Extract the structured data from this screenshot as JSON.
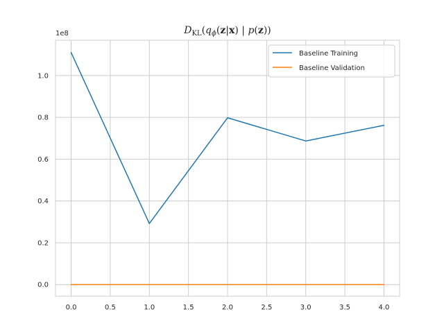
{
  "chart_data": {
    "type": "line",
    "title_parts": {
      "d": "D",
      "kl": "KL",
      "open": "(",
      "q": "q",
      "phi": "ϕ",
      "args1": "(",
      "z1": "z",
      "bar": "|",
      "x": "x",
      "args1_close": ")",
      "sep": " | ",
      "p": "p",
      "args2": "(",
      "z2": "z",
      "args2_close": ")",
      "close": ")"
    },
    "y_offset_label": "1e8",
    "xlim": [
      -0.2,
      4.2
    ],
    "ylim": [
      -0.0557,
      1.1689
    ],
    "y_multiplier": 100000000,
    "x_ticks": [
      0.0,
      0.5,
      1.0,
      1.5,
      2.0,
      2.5,
      3.0,
      3.5,
      4.0
    ],
    "x_tick_labels": [
      "0.0",
      "0.5",
      "1.0",
      "1.5",
      "2.0",
      "2.5",
      "3.0",
      "3.5",
      "4.0"
    ],
    "y_ticks": [
      0.0,
      0.2,
      0.4,
      0.6,
      0.8,
      1.0
    ],
    "y_tick_labels": [
      "0.0",
      "0.2",
      "0.4",
      "0.6",
      "0.8",
      "1.0"
    ],
    "grid": true,
    "legend_position": "top-right",
    "x": [
      0,
      1,
      2,
      3,
      4
    ],
    "series": [
      {
        "name": "Baseline Training",
        "color": "#1f77b4",
        "values": [
          1.11,
          0.292,
          0.798,
          0.687,
          0.762
        ]
      },
      {
        "name": "Baseline Validation",
        "color": "#ff7f0e",
        "values": [
          0.0,
          0.0,
          0.0,
          0.0,
          0.0
        ]
      }
    ]
  }
}
